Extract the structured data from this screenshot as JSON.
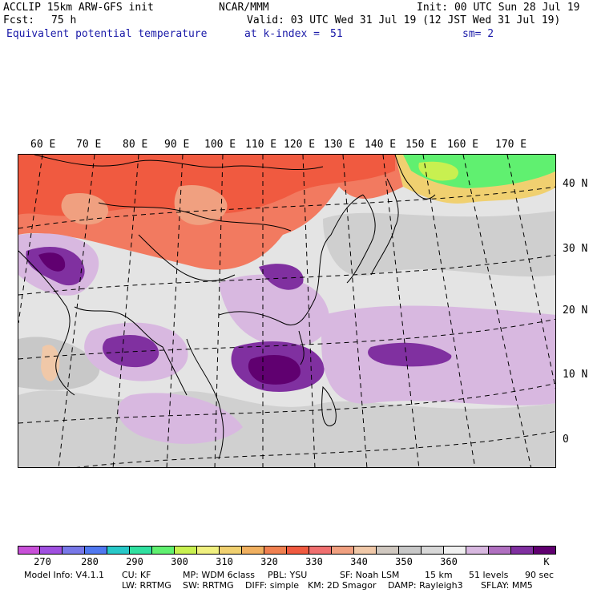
{
  "header": {
    "model": "ACCLIP 15km ARW-GFS init",
    "org": "NCAR/MMM",
    "init": "Init: 00 UTC Sun 28 Jul 19",
    "fcst_label": "Fcst:",
    "fcst_value": "75 h",
    "valid": "Valid: 03 UTC Wed 31 Jul 19 (12 JST Wed 31 Jul 19)",
    "field": "Equivalent potential temperature",
    "level": "at k-index =",
    "level_value": "51",
    "smooth": "sm= 2"
  },
  "map": {
    "lon_labels": [
      "60 E",
      "70 E",
      "80 E",
      "90 E",
      "100 E",
      "110 E",
      "120 E",
      "130 E",
      "140 E",
      "150 E",
      "160 E",
      "170 E"
    ],
    "lat_labels": [
      "40 N",
      "30 N",
      "20 N",
      "10 N",
      "0"
    ]
  },
  "colorbar": {
    "colors": [
      "#c850d8",
      "#a050e0",
      "#7878e8",
      "#5078f0",
      "#28c8c8",
      "#30e0a0",
      "#60f070",
      "#c8f050",
      "#f0f080",
      "#f0d070",
      "#f0b060",
      "#f08050",
      "#f05a40",
      "#f07070",
      "#f0a080",
      "#f0c8a8",
      "#d0c8c0",
      "#c8c8c8",
      "#d8d8d8",
      "#f0f0f0",
      "#d8b8e0",
      "#b070c0",
      "#8030a0",
      "#600070"
    ],
    "ticks": [
      "270",
      "280",
      "290",
      "300",
      "310",
      "320",
      "330",
      "340",
      "350",
      "360"
    ],
    "unit": "K"
  },
  "footer": {
    "line1": [
      "Model Info: V4.1.1",
      "CU: KF",
      "MP: WDM 6class",
      "PBL: YSU",
      "SF: Noah LSM",
      "15 km",
      "51 levels",
      "90 sec"
    ],
    "line2": [
      "LW: RRTMG",
      "SW: RRTMG",
      "DIFF: simple",
      "KM: 2D Smagor",
      "DAMP: Rayleigh3",
      "SFLAY: MM5"
    ]
  }
}
